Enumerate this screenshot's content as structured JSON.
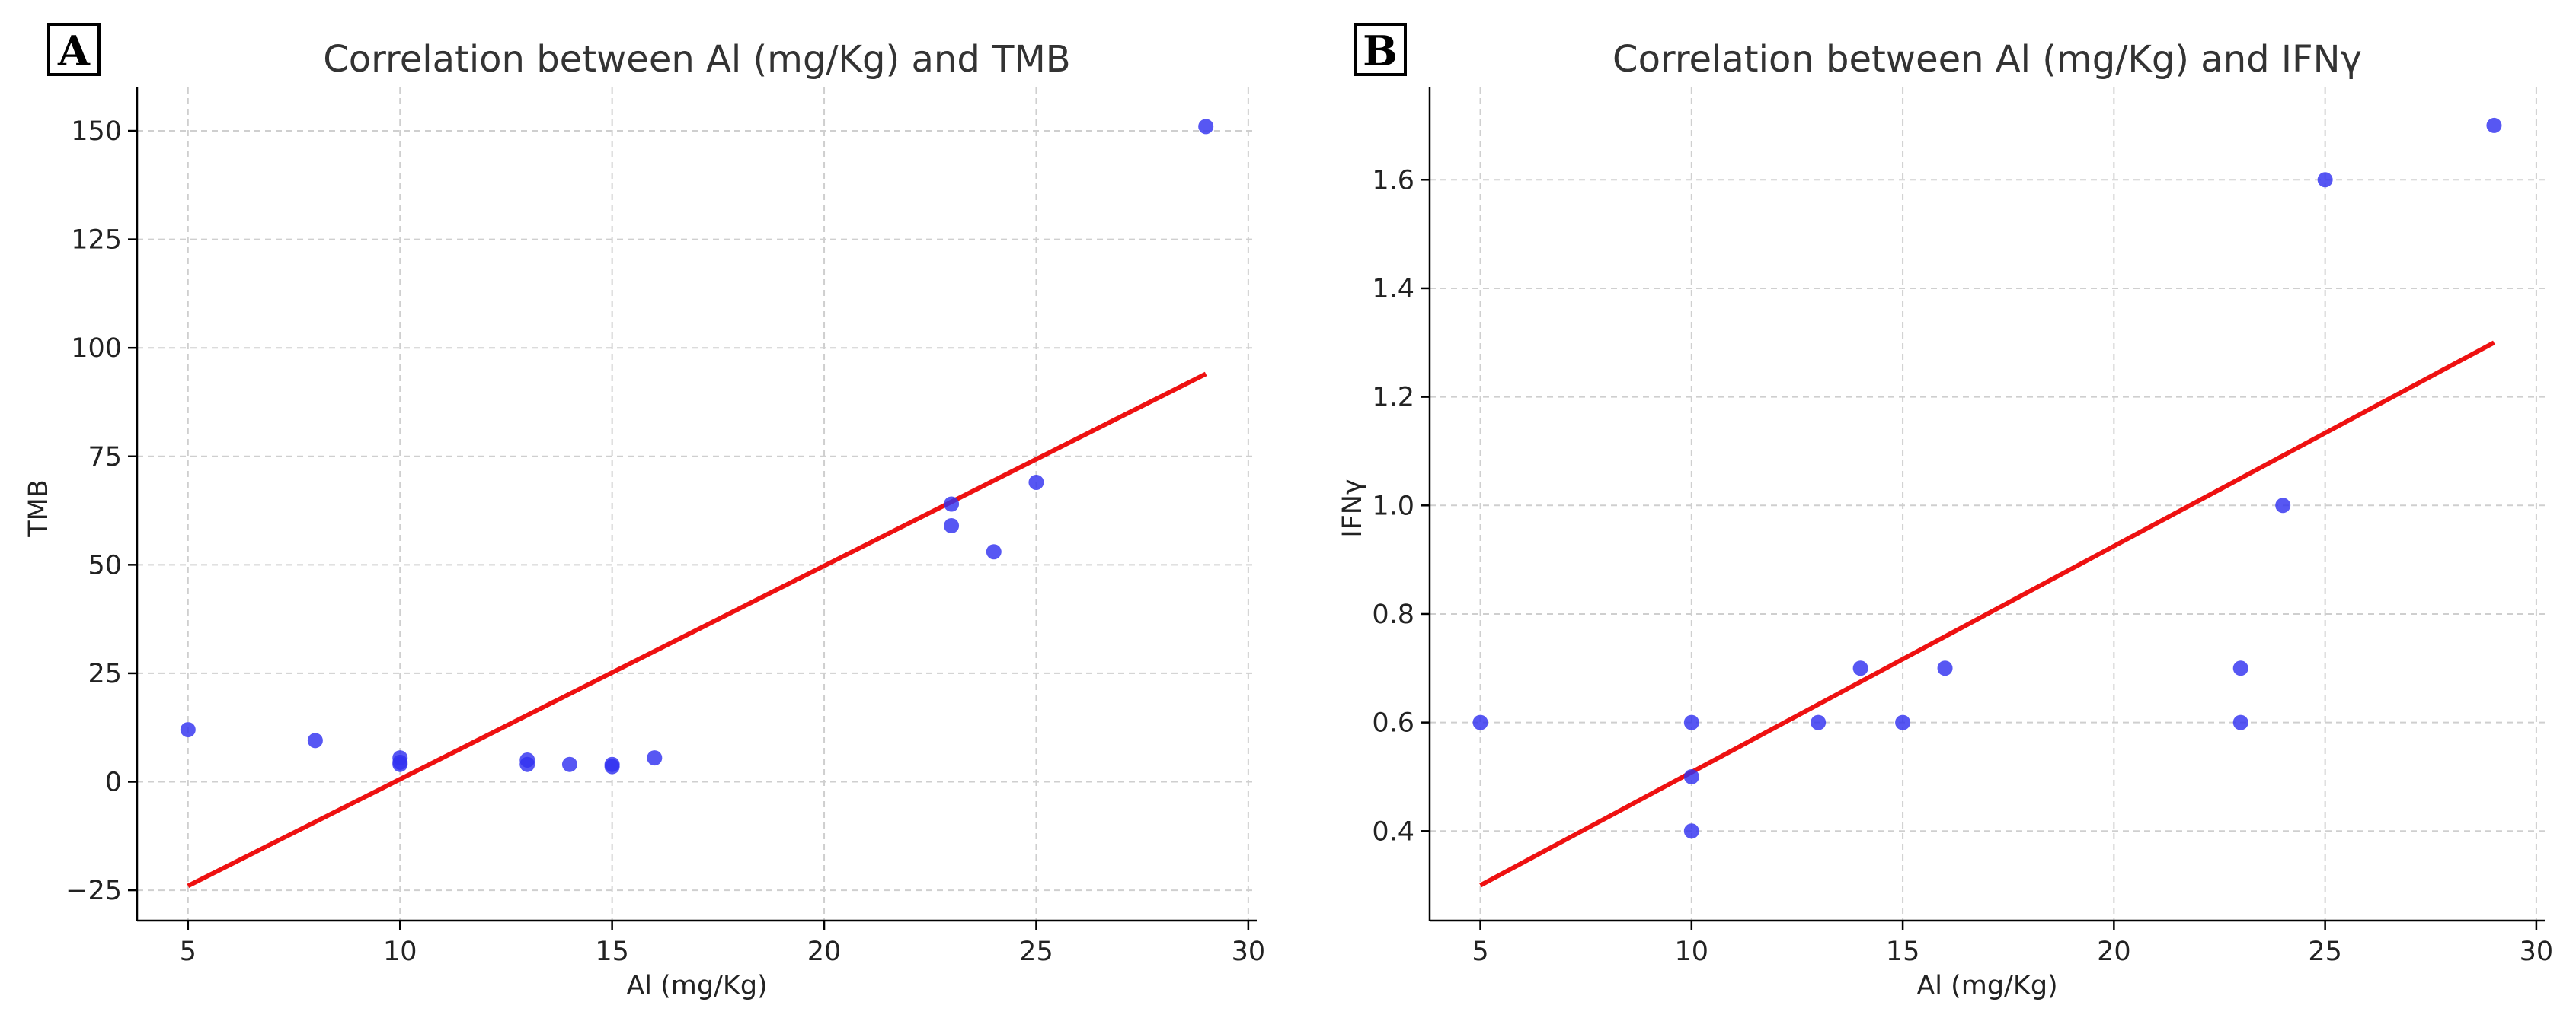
{
  "panels": [
    {
      "letter": "A",
      "chart_data": {
        "type": "scatter",
        "title": "Correlation between Al (mg/Kg) and TMB",
        "xlabel": "Al (mg/Kg)",
        "ylabel": "TMB",
        "xlim": [
          3.8,
          30.2
        ],
        "ylim": [
          -32,
          160
        ],
        "xticks": [
          5,
          10,
          15,
          20,
          25,
          30
        ],
        "xtick_labels": [
          "5",
          "10",
          "15",
          "20",
          "25",
          "30"
        ],
        "yticks": [
          -25,
          0,
          25,
          50,
          75,
          100,
          125,
          150
        ],
        "ytick_labels": [
          "−25",
          "0",
          "25",
          "50",
          "75",
          "100",
          "125",
          "150"
        ],
        "grid": true,
        "points": {
          "x": [
            5,
            8,
            10,
            10,
            10,
            13,
            13,
            14,
            15,
            15,
            16,
            23,
            23,
            24,
            25,
            29
          ],
          "y": [
            12,
            9.5,
            5.5,
            4.5,
            4,
            5,
            4,
            4,
            4,
            3.5,
            5.5,
            64,
            59,
            53,
            69,
            151
          ],
          "color": "#3232f0"
        },
        "fit_line": {
          "x": [
            5,
            29
          ],
          "y": [
            -24,
            94
          ],
          "color": "#ee1111"
        }
      }
    },
    {
      "letter": "B",
      "chart_data": {
        "type": "scatter",
        "title": "Correlation between Al (mg/Kg) and IFNγ",
        "xlabel": "Al (mg/Kg)",
        "ylabel": "IFNγ",
        "xlim": [
          3.8,
          30.2
        ],
        "ylim": [
          0.235,
          1.77
        ],
        "xticks": [
          5,
          10,
          15,
          20,
          25,
          30
        ],
        "xtick_labels": [
          "5",
          "10",
          "15",
          "20",
          "25",
          "30"
        ],
        "yticks": [
          0.4,
          0.6,
          0.8,
          1.0,
          1.2,
          1.4,
          1.6
        ],
        "ytick_labels": [
          "0.4",
          "0.6",
          "0.8",
          "1.0",
          "1.2",
          "1.4",
          "1.6"
        ],
        "grid": true,
        "points": {
          "x": [
            5,
            10,
            10,
            10,
            13,
            14,
            15,
            16,
            23,
            23,
            24,
            25,
            29
          ],
          "y": [
            0.6,
            0.6,
            0.5,
            0.4,
            0.6,
            0.7,
            0.6,
            0.7,
            0.7,
            0.6,
            1.0,
            1.6,
            1.7
          ],
          "color": "#3232f0"
        },
        "fit_line": {
          "x": [
            5,
            29
          ],
          "y": [
            0.3,
            1.3
          ],
          "color": "#ee1111"
        }
      }
    }
  ]
}
